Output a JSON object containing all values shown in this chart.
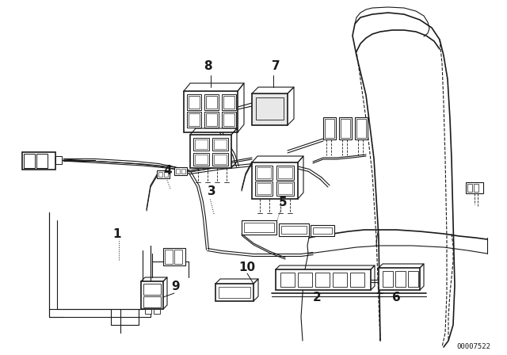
{
  "bg_color": "#ffffff",
  "line_color": "#1a1a1a",
  "fig_width": 6.4,
  "fig_height": 4.48,
  "dpi": 100,
  "diagram_id": "00007522"
}
